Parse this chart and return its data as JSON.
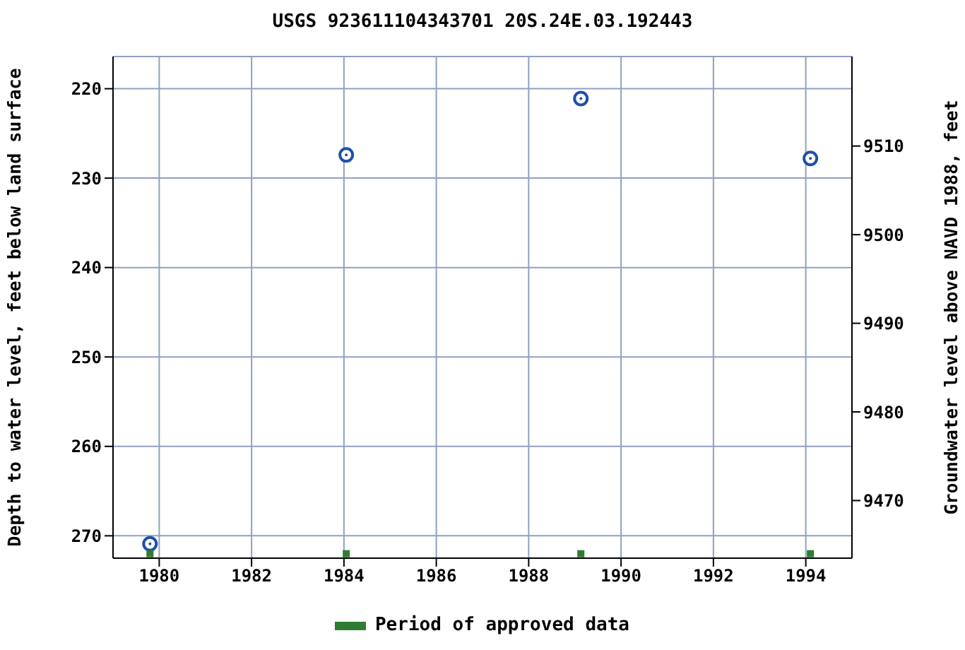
{
  "chart_data": {
    "type": "scatter",
    "title": "USGS 923611104343701 20S.24E.03.192443",
    "ylabel": "Depth to water level, feet below land surface",
    "y2label": "Groundwater level above NAVD 1988, feet",
    "xlim": [
      1979,
      1995
    ],
    "xticks": [
      1980,
      1982,
      1984,
      1986,
      1988,
      1990,
      1992,
      1994
    ],
    "ylim": [
      272.5,
      216.4
    ],
    "yticks": [
      220,
      230,
      240,
      250,
      260,
      270
    ],
    "y2lim": [
      9463.5,
      9520.1
    ],
    "y2ticks": [
      9470,
      9480,
      9490,
      9500,
      9510
    ],
    "grid": true,
    "legend": "bottom",
    "series": [
      {
        "color": "#1f4fa8",
        "marker": "circle",
        "x": [
          1979.8,
          1984.05,
          1989.13,
          1994.1
        ],
        "values": [
          270.9,
          227.4,
          221.1,
          227.8
        ]
      },
      {
        "name": "Period of approved data",
        "color": "#2e7d32",
        "marker": "square",
        "x": [
          1979.8,
          1984.05,
          1989.13,
          1994.1
        ],
        "values": [
          272,
          272,
          272,
          272
        ]
      }
    ]
  }
}
